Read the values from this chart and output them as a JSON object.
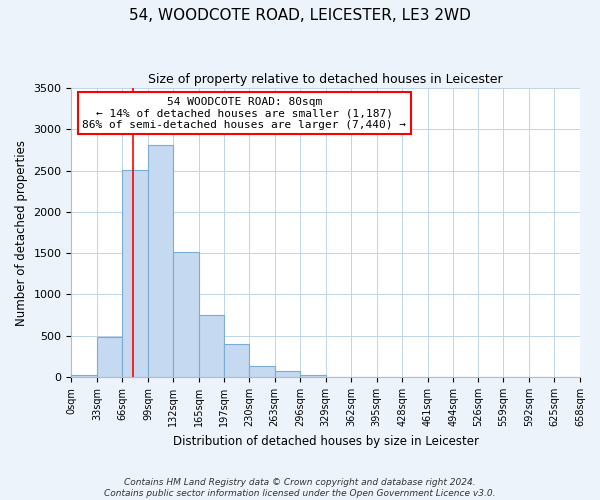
{
  "title": "54, WOODCOTE ROAD, LEICESTER, LE3 2WD",
  "subtitle": "Size of property relative to detached houses in Leicester",
  "xlabel": "Distribution of detached houses by size in Leicester",
  "ylabel": "Number of detached properties",
  "bar_color": "#c5d9f0",
  "bar_edge_color": "#7aadd4",
  "bin_edges": [
    0,
    33,
    66,
    99,
    132,
    165,
    197,
    230,
    263,
    296,
    329,
    362,
    395,
    428,
    461,
    494,
    526,
    559,
    592,
    625,
    658
  ],
  "bar_heights": [
    20,
    480,
    2510,
    2810,
    1510,
    750,
    395,
    140,
    70,
    20,
    5,
    0,
    0,
    0,
    0,
    0,
    0,
    0,
    0,
    0
  ],
  "tick_labels": [
    "0sqm",
    "33sqm",
    "66sqm",
    "99sqm",
    "132sqm",
    "165sqm",
    "197sqm",
    "230sqm",
    "263sqm",
    "296sqm",
    "329sqm",
    "362sqm",
    "395sqm",
    "428sqm",
    "461sqm",
    "494sqm",
    "526sqm",
    "559sqm",
    "592sqm",
    "625sqm",
    "658sqm"
  ],
  "property_line_x": 80,
  "annotation_line1": "54 WOODCOTE ROAD: 80sqm",
  "annotation_line2": "← 14% of detached houses are smaller (1,187)",
  "annotation_line3": "86% of semi-detached houses are larger (7,440) →",
  "annotation_box_color": "white",
  "annotation_box_edge_color": "red",
  "vline_color": "red",
  "ylim": [
    0,
    3500
  ],
  "yticks": [
    0,
    500,
    1000,
    1500,
    2000,
    2500,
    3000,
    3500
  ],
  "footer_line1": "Contains HM Land Registry data © Crown copyright and database right 2024.",
  "footer_line2": "Contains public sector information licensed under the Open Government Licence v3.0.",
  "bg_color": "#edf3fb",
  "plot_bg_color": "white",
  "grid_color": "#c0d4eb"
}
